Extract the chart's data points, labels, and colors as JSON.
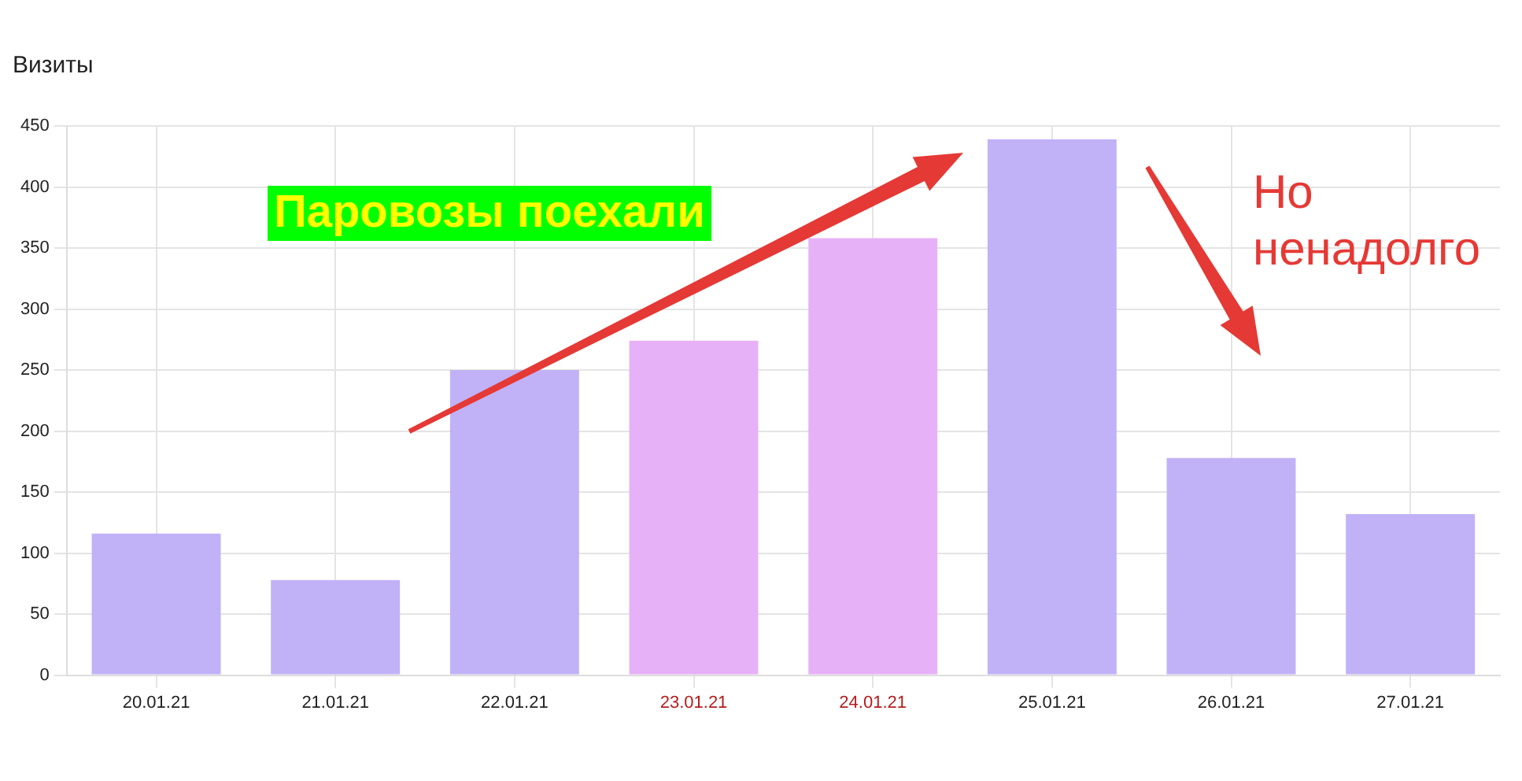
{
  "chart_data": {
    "type": "bar",
    "title": "Визиты",
    "categories": [
      "20.01.21",
      "21.01.21",
      "22.01.21",
      "23.01.21",
      "24.01.21",
      "25.01.21",
      "26.01.21",
      "27.01.21"
    ],
    "values": [
      116,
      78,
      250,
      274,
      358,
      439,
      178,
      132
    ],
    "colors": [
      "#c1b1f7",
      "#c1b1f7",
      "#c1b1f7",
      "#e7b1f7",
      "#e7b1f7",
      "#c1b1f7",
      "#c1b1f7",
      "#c1b1f7"
    ],
    "ylim": [
      0,
      450
    ],
    "yticks": [
      0,
      50,
      100,
      150,
      200,
      250,
      300,
      350,
      400,
      450
    ],
    "grid": true,
    "legend": false,
    "annotations": [
      "Паровозы поехали",
      "Но ненадолго"
    ]
  }
}
